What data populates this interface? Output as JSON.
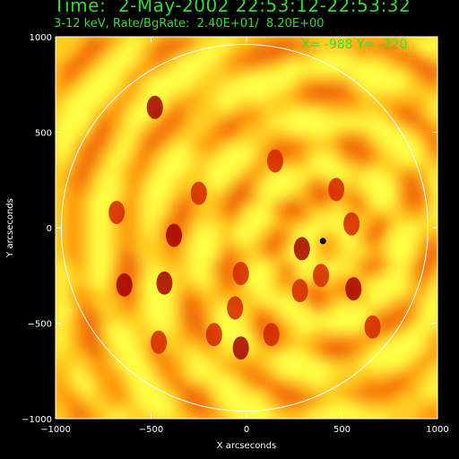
{
  "header": {
    "title": "Time:  2-May-2002 22:53:12-22:53:32",
    "subtitle": "3-12 keV, Rate/BgRate:  2.40E+01/  8.20E+00",
    "coord_readout": "X= -988 Y= -220"
  },
  "colors": {
    "background": "#000000",
    "header_text": "#35d935",
    "axes": "#ffffff",
    "limb": "#ffffff",
    "map_low": "#ffff40",
    "map_mid": "#ff9a10",
    "map_high": "#a50000"
  },
  "chart_data": {
    "type": "heatmap",
    "title": "Time:  2-May-2002 22:53:12-22:53:32",
    "subtitle": "3-12 keV, Rate/BgRate:  2.40E+01/  8.20E+00",
    "xlabel": "X arcseconds",
    "ylabel": "Y arcseconds",
    "xlim": [
      -1000,
      1000
    ],
    "ylim": [
      -1000,
      1000
    ],
    "xticks": [
      -1000,
      -500,
      0,
      500,
      1000
    ],
    "yticks": [
      -1000,
      -500,
      0,
      500,
      1000
    ],
    "xtick_labels": [
      "−1000",
      "−500",
      "0",
      "500",
      "1000"
    ],
    "ytick_labels": [
      "−1000",
      "−500",
      "0",
      "500",
      "1000"
    ],
    "solar_limb_radius": 960,
    "solar_limb_center": [
      -10,
      0
    ],
    "source_marker": [
      400,
      -70
    ],
    "hotspots": [
      [
        -480,
        630
      ],
      [
        470,
        200
      ],
      [
        550,
        20
      ],
      [
        290,
        -110
      ],
      [
        390,
        -250
      ],
      [
        -680,
        80
      ],
      [
        -640,
        -300
      ],
      [
        -60,
        -420
      ],
      [
        -30,
        -240
      ],
      [
        -380,
        -40
      ],
      [
        -250,
        180
      ],
      [
        150,
        350
      ],
      [
        -30,
        -630
      ],
      [
        -460,
        -600
      ],
      [
        660,
        -520
      ],
      [
        -430,
        -290
      ],
      [
        -170,
        -560
      ],
      [
        130,
        -560
      ],
      [
        560,
        -320
      ],
      [
        280,
        -330
      ]
    ],
    "grid": false,
    "colormap": "yellow-orange-red"
  }
}
